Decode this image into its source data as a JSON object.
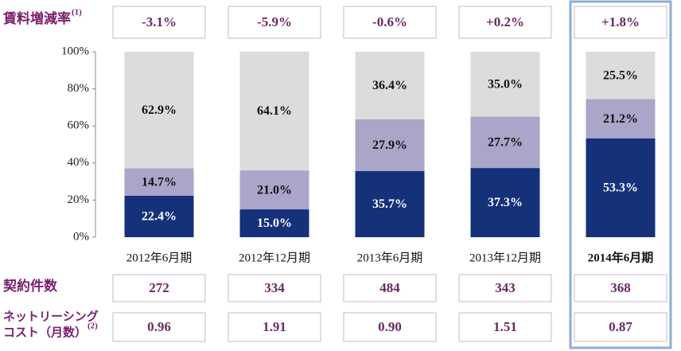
{
  "chart_data": {
    "type": "bar",
    "stacked": true,
    "categories": [
      "2012年6月期",
      "2012年12月期",
      "2013年6月期",
      "2013年12月期",
      "2014年6月期"
    ],
    "series": [
      {
        "color": "#14317a",
        "values": [
          22.4,
          15.0,
          35.7,
          37.3,
          53.3
        ],
        "value_labels": [
          "22.4%",
          "15.0%",
          "35.7%",
          "37.3%",
          "53.3%"
        ]
      },
      {
        "color": "#a9a6c9",
        "values": [
          14.7,
          21.0,
          27.9,
          27.7,
          21.2
        ],
        "value_labels": [
          "14.7%",
          "21.0%",
          "27.9%",
          "27.7%",
          "21.2%"
        ]
      },
      {
        "color": "#dcdcdc",
        "values": [
          62.9,
          64.1,
          36.4,
          35.0,
          25.5
        ],
        "value_labels": [
          "62.9%",
          "64.1%",
          "36.4%",
          "35.0%",
          "25.5%"
        ]
      }
    ],
    "ylim": [
      0,
      100
    ],
    "yticks": [
      {
        "value": 0,
        "label": "0%"
      },
      {
        "value": 20,
        "label": "20%"
      },
      {
        "value": 40,
        "label": "40%"
      },
      {
        "value": 60,
        "label": "60%"
      },
      {
        "value": 80,
        "label": "80%"
      },
      {
        "value": 100,
        "label": "100%"
      }
    ],
    "highlight": 4
  },
  "rent_change": {
    "label": "賃料増減率",
    "note": "(1)",
    "values": [
      "-3.1%",
      "-5.9%",
      "-0.6%",
      "+0.2%",
      "+1.8%"
    ]
  },
  "contracts": {
    "label": "契約件数",
    "values": [
      "272",
      "334",
      "484",
      "343",
      "368"
    ]
  },
  "leasing_cost": {
    "label": [
      "ネットリーシング",
      "コスト（月数）"
    ],
    "note": "(2)",
    "values": [
      "0.96",
      "1.91",
      "0.90",
      "1.51",
      "0.87"
    ]
  }
}
